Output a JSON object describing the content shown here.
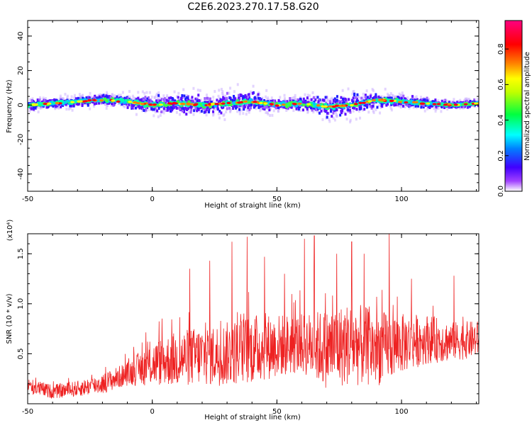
{
  "title": "C2E6.2023.270.17.58.G20",
  "chart_data": [
    {
      "type": "heatmap",
      "xlabel": "Height of straight line (km)",
      "ylabel": "Frequency (Hz)",
      "xlim": [
        -50,
        131
      ],
      "ylim": [
        -50,
        49
      ],
      "xticks": [
        -50,
        0,
        50,
        100
      ],
      "yticks": [
        -40,
        -20,
        0,
        20,
        40
      ],
      "grid": false,
      "colorbar": {
        "label": "Normalized spectral amplitude",
        "range": [
          0,
          0.96
        ],
        "ticks": [
          "0.0",
          "0.2",
          "0.4",
          "0.6",
          "0.8"
        ],
        "colormap": "hsv",
        "colors": [
          "#ffffff",
          "#8000ff",
          "#0000ff",
          "#00ffff",
          "#00ff00",
          "#ffff00",
          "#ff8000",
          "#ff0000",
          "#ff0080"
        ]
      },
      "ridge": {
        "x": [
          -50,
          -40,
          -30,
          -20,
          -10,
          0,
          10,
          20,
          30,
          40,
          50,
          60,
          70,
          80,
          90,
          100,
          110,
          120,
          131
        ],
        "y": [
          0,
          1,
          2,
          3,
          2,
          0,
          1,
          0,
          1,
          2,
          0,
          1,
          -1,
          0,
          3,
          2,
          1,
          0,
          1
        ],
        "width": [
          4,
          4,
          4,
          4,
          5,
          6,
          8,
          8,
          8,
          7,
          4,
          5,
          8,
          8,
          6,
          4,
          4,
          3,
          3
        ]
      }
    },
    {
      "type": "line",
      "xlabel": "Height of straight line (km)",
      "ylabel": "SNR (10 * v/v)",
      "yscale_label": "(x10⁴)",
      "xlim": [
        -50,
        131
      ],
      "ylim": [
        0,
        1.7
      ],
      "xticks": [
        -50,
        0,
        50,
        100
      ],
      "yticks": [
        0.5,
        1.0,
        1.5
      ],
      "ytick_labels": [
        "0.5",
        "1.0",
        "1.5"
      ],
      "grid": false,
      "series": [
        {
          "color": "#ee2222",
          "envelope": {
            "x": [
              -50,
              -40,
              -30,
              -20,
              -10,
              0,
              10,
              20,
              30,
              40,
              50,
              60,
              70,
              80,
              90,
              100,
              110,
              120,
              131
            ],
            "mean": [
              0.18,
              0.12,
              0.15,
              0.2,
              0.3,
              0.4,
              0.45,
              0.48,
              0.5,
              0.55,
              0.58,
              0.6,
              0.55,
              0.6,
              0.55,
              0.6,
              0.65,
              0.62,
              0.65
            ],
            "spread": [
              0.08,
              0.07,
              0.08,
              0.1,
              0.12,
              0.22,
              0.28,
              0.3,
              0.32,
              0.35,
              0.32,
              0.3,
              0.4,
              0.42,
              0.38,
              0.3,
              0.25,
              0.2,
              0.18
            ]
          },
          "peaks": [
            {
              "x": 15,
              "y": 1.35
            },
            {
              "x": 23,
              "y": 1.43
            },
            {
              "x": 32,
              "y": 1.62
            },
            {
              "x": 38,
              "y": 1.67
            },
            {
              "x": 45,
              "y": 1.47
            },
            {
              "x": 53,
              "y": 1.3
            },
            {
              "x": 61,
              "y": 1.65
            },
            {
              "x": 65,
              "y": 1.68
            },
            {
              "x": 74,
              "y": 1.5
            },
            {
              "x": 80,
              "y": 1.62
            },
            {
              "x": 85,
              "y": 1.5
            },
            {
              "x": 95,
              "y": 1.7
            },
            {
              "x": 104,
              "y": 1.25
            },
            {
              "x": 121,
              "y": 1.28
            }
          ]
        }
      ]
    }
  ]
}
